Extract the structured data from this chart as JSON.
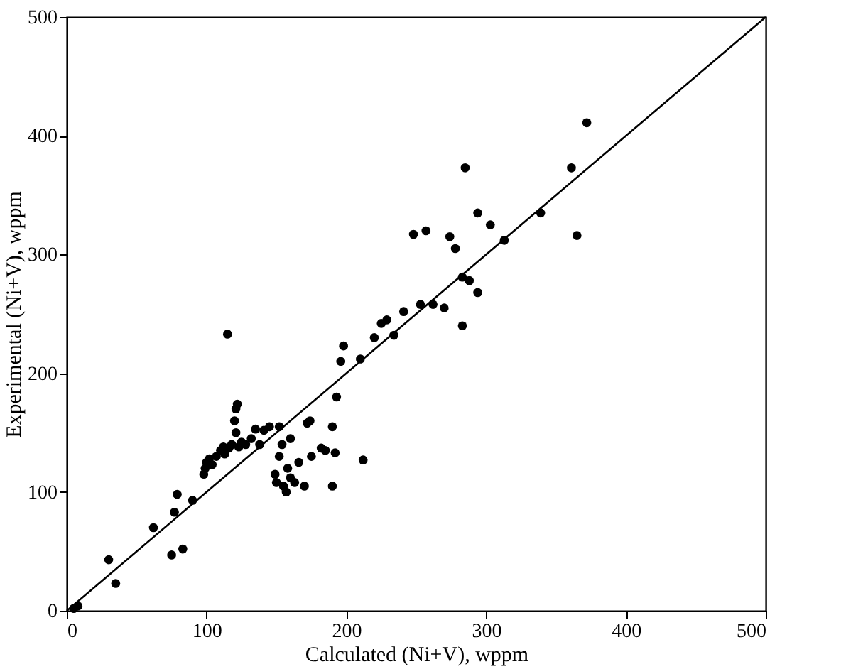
{
  "chart_data": {
    "type": "scatter",
    "xlabel": "Calculated (Ni+V), wppm",
    "ylabel": "Experimental (Ni+V), wppm",
    "xlim": [
      0,
      500
    ],
    "ylim": [
      0,
      500
    ],
    "xticks": [
      0,
      100,
      200,
      300,
      400,
      500
    ],
    "yticks": [
      0,
      100,
      200,
      300,
      400,
      500
    ],
    "grid": false,
    "series": [
      {
        "marker": "circle",
        "color": "#000000",
        "x": [
          5,
          8,
          30,
          35,
          62,
          75,
          77,
          79,
          83,
          90,
          98,
          99,
          100,
          102,
          104,
          107,
          110,
          112,
          113,
          115,
          116,
          118,
          120,
          121,
          122,
          121,
          123,
          125,
          128,
          132,
          135,
          138,
          141,
          145,
          149,
          150,
          152,
          152,
          154,
          155,
          157,
          158,
          160,
          160,
          163,
          166,
          172,
          174,
          170,
          175,
          182,
          185,
          190,
          190,
          192,
          193,
          196,
          198,
          210,
          212,
          220,
          225,
          229,
          234,
          241,
          248,
          253,
          257,
          262,
          270,
          274,
          278,
          283,
          283,
          285,
          288,
          294,
          294,
          303,
          313,
          339,
          361,
          365,
          372
        ],
        "values": [
          2,
          4,
          43,
          23,
          70,
          47,
          83,
          98,
          52,
          93,
          115,
          120,
          125,
          128,
          123,
          130,
          135,
          138,
          132,
          233,
          137,
          140,
          160,
          170,
          174,
          150,
          138,
          142,
          140,
          145,
          153,
          140,
          152,
          155,
          115,
          108,
          155,
          130,
          140,
          105,
          100,
          120,
          145,
          112,
          108,
          125,
          158,
          160,
          105,
          130,
          137,
          135,
          105,
          155,
          133,
          180,
          210,
          223,
          212,
          127,
          230,
          242,
          245,
          232,
          252,
          317,
          258,
          320,
          258,
          255,
          315,
          305,
          240,
          281,
          373,
          278,
          268,
          335,
          325,
          312,
          335,
          373,
          316,
          411
        ]
      },
      {
        "type": "line",
        "line_style": "solid",
        "color": "#000000",
        "x": [
          0,
          500
        ],
        "values": [
          0,
          500
        ]
      }
    ]
  }
}
